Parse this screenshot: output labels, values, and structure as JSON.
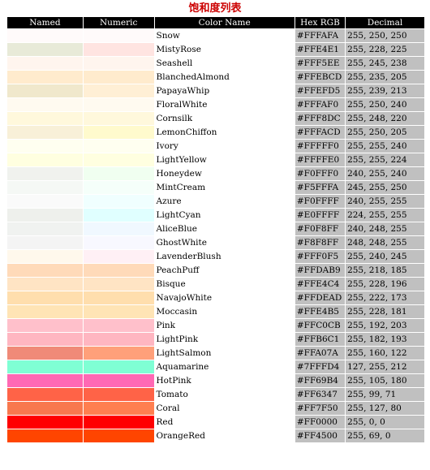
{
  "title": "饱和度列表",
  "headers": [
    "Named",
    "Numeric",
    "Color Name",
    "Hex RGB",
    "Decimal"
  ],
  "rows": [
    {
      "name": "Snow",
      "hex": "#FFFAFA",
      "dec": "255, 250, 250",
      "swatch": "#FFFAFA"
    },
    {
      "name": "MistyRose",
      "hex": "#FFE4E1",
      "dec": "255, 228, 225",
      "swatch": "#E8EAD8"
    },
    {
      "name": "Seashell",
      "hex": "#FFF5EE",
      "dec": "255, 245, 238",
      "swatch": "#FFF5EE"
    },
    {
      "name": "BlanchedAlmond",
      "hex": "#FFEBCD",
      "dec": "255, 235, 205",
      "swatch": "#FFEBCD"
    },
    {
      "name": "PapayaWhip",
      "hex": "#FFEFD5",
      "dec": "255, 239, 213",
      "swatch": "#F0E8CC"
    },
    {
      "name": "FloralWhite",
      "hex": "#FFFAF0",
      "dec": "255, 250, 240",
      "swatch": "#FFFAF0"
    },
    {
      "name": "Cornsilk",
      "hex": "#FFF8DC",
      "dec": "255, 248, 220",
      "swatch": "#FFF8DC"
    },
    {
      "name": "LemonChiffon",
      "hex": "#FFFACD",
      "dec": "255, 250, 205",
      "swatch": "#F8F0D8"
    },
    {
      "name": "Ivory",
      "hex": "#FFFFF0",
      "dec": "255, 255, 240",
      "swatch": "#FFFFF0"
    },
    {
      "name": "LightYellow",
      "hex": "#FFFFE0",
      "dec": "255, 255, 224",
      "swatch": "#FFFFE0"
    },
    {
      "name": "Honeydew",
      "hex": "#F0FFF0",
      "dec": "240, 255, 240",
      "swatch": "#F0F2EE"
    },
    {
      "name": "MintCream",
      "hex": "#F5FFFA",
      "dec": "245, 255, 250",
      "swatch": "#F5F8F5"
    },
    {
      "name": "Azure",
      "hex": "#F0FFFF",
      "dec": "240, 255, 255",
      "swatch": "#FAFAFA"
    },
    {
      "name": "LightCyan",
      "hex": "#E0FFFF",
      "dec": "224, 255, 255",
      "swatch": "#EEF0EC"
    },
    {
      "name": "AliceBlue",
      "hex": "#F0F8FF",
      "dec": "240, 248, 255",
      "swatch": "#F0F2F0"
    },
    {
      "name": "GhostWhite",
      "hex": "#F8F8FF",
      "dec": "248, 248, 255",
      "swatch": "#F4F4F4"
    },
    {
      "name": "LavenderBlush",
      "hex": "#FFF0F5",
      "dec": "255, 240, 245",
      "swatch": "#FFF8EC"
    },
    {
      "name": "PeachPuff",
      "hex": "#FFDAB9",
      "dec": "255, 218, 185",
      "swatch": "#FFDAB9"
    },
    {
      "name": "Bisque",
      "hex": "#FFE4C4",
      "dec": "255, 228, 196",
      "swatch": "#FFE4C4"
    },
    {
      "name": "NavajoWhite",
      "hex": "#FFDEAD",
      "dec": "255, 222, 173",
      "swatch": "#FFDEAD"
    },
    {
      "name": "Moccasin",
      "hex": "#FFE4B5",
      "dec": "255, 228, 181",
      "swatch": "#FFE4B5"
    },
    {
      "name": "Pink",
      "hex": "#FFC0CB",
      "dec": "255, 192, 203",
      "swatch": "#FFC0CB"
    },
    {
      "name": "LightPink",
      "hex": "#FFB6C1",
      "dec": "255, 182, 193",
      "swatch": "#FFB6C1"
    },
    {
      "name": "LightSalmon",
      "hex": "#FFA07A",
      "dec": "255, 160, 122",
      "swatch": "#F08A78"
    },
    {
      "name": "Aquamarine",
      "hex": "#7FFFD4",
      "dec": "127, 255, 212",
      "swatch": "#7FFFD4"
    },
    {
      "name": "HotPink",
      "hex": "#FF69B4",
      "dec": "255, 105, 180",
      "swatch": "#FF69B4"
    },
    {
      "name": "Tomato",
      "hex": "#FF6347",
      "dec": "255, 99, 71",
      "swatch": "#FF6347"
    },
    {
      "name": "Coral",
      "hex": "#FF7F50",
      "dec": "255, 127, 80",
      "swatch": "#F8784E"
    },
    {
      "name": "Red",
      "hex": "#FF0000",
      "dec": "255, 0, 0",
      "swatch": "#FF0000"
    },
    {
      "name": "OrangeRed",
      "hex": "#FF4500",
      "dec": "255, 69, 0",
      "swatch": "#FF4500"
    }
  ]
}
